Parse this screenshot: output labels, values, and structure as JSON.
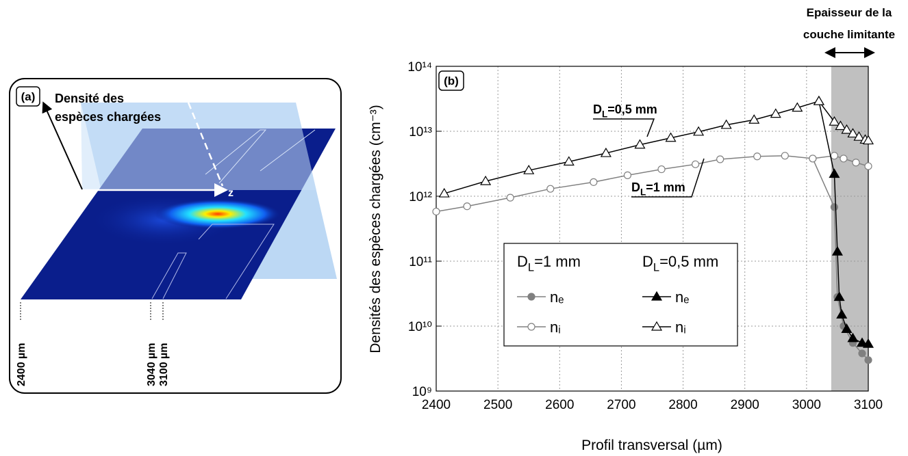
{
  "illustration": {
    "panel_label": "(a)",
    "axis_title": [
      "Densité des",
      "espèces chargées"
    ],
    "axis_z": "z",
    "positions": [
      "2400 µm",
      "3040 µm",
      "3100 µm"
    ]
  },
  "chart_data": {
    "type": "line",
    "panel_label": "(b)",
    "xlabel": "Profil transversal (µm)",
    "ylabel": "Densités des espèces chargées (cm⁻³)",
    "xlim": [
      2400,
      3100
    ],
    "xticks": [
      2400,
      2500,
      2600,
      2700,
      2800,
      2900,
      3000,
      3100
    ],
    "ylim": [
      1000000000.0,
      100000000000000.0
    ],
    "log_y": true,
    "yticks": [
      {
        "value": 1000000000.0,
        "label": "10⁹"
      },
      {
        "value": 10000000000.0,
        "label": "10¹⁰"
      },
      {
        "value": 100000000000.0,
        "label": "10¹¹"
      },
      {
        "value": 1000000000000.0,
        "label": "10¹²"
      },
      {
        "value": 10000000000000.0,
        "label": "10¹³"
      },
      {
        "value": 100000000000000.0,
        "label": "10¹⁴"
      }
    ],
    "grid": true,
    "shaded_region": [
      3040,
      3100
    ],
    "shaded_color": "#c0c0c0",
    "region_label": [
      "Epaisseur de la",
      "couche limitante"
    ],
    "legend": [
      {
        "symbol": "D",
        "subscript": "L",
        "text": "=1 mm"
      },
      {
        "symbol": "D",
        "subscript": "L",
        "text": "=0,5 mm"
      }
    ],
    "annotations": [
      {
        "symbol": "D",
        "subscript": "L",
        "text": "=0,5 mm"
      },
      {
        "symbol": "D",
        "subscript": "L",
        "text": "=1 mm"
      }
    ],
    "series": [
      {
        "name": "nₑ",
        "color": "#808080",
        "marker": "circle",
        "filled": true,
        "x": [
          3010,
          3045,
          3050,
          3060,
          3075,
          3090,
          3100
        ],
        "values": [
          3800000000000.0,
          680000000000.0,
          28000000000.0,
          10000000000.0,
          5500000000.0,
          3800000000.0,
          3000000000.0
        ]
      },
      {
        "name": "nᵢ",
        "color": "#808080",
        "marker": "circle",
        "filled": false,
        "x": [
          2400,
          2450,
          2520,
          2585,
          2655,
          2710,
          2765,
          2820,
          2860,
          2920,
          2965,
          3010,
          3045,
          3060,
          3080,
          3100
        ],
        "values": [
          580000000000.0,
          700000000000.0,
          950000000000.0,
          1300000000000.0,
          1650000000000.0,
          2100000000000.0,
          2600000000000.0,
          3100000000000.0,
          3700000000000.0,
          4100000000000.0,
          4200000000000.0,
          3800000000000.0,
          4200000000000.0,
          3800000000000.0,
          3300000000000.0,
          2900000000000.0
        ]
      },
      {
        "name": "nₑ",
        "color": "#000000",
        "marker": "triangle",
        "filled": true,
        "x": [
          3020,
          3045,
          3050,
          3053,
          3057,
          3065,
          3075,
          3090,
          3100
        ],
        "values": [
          29000000000000.0,
          2200000000000.0,
          140000000000.0,
          28000000000.0,
          15000000000.0,
          9000000000.0,
          6500000000.0,
          5500000000.0,
          5300000000.0
        ]
      },
      {
        "name": "nᵢ",
        "color": "#000000",
        "marker": "triangle",
        "filled": false,
        "x": [
          2413,
          2480,
          2550,
          2615,
          2675,
          2730,
          2780,
          2825,
          2870,
          2915,
          2950,
          2985,
          3020,
          3045,
          3055,
          3065,
          3075,
          3085,
          3095,
          3100
        ],
        "values": [
          1100000000000.0,
          1700000000000.0,
          2500000000000.0,
          3400000000000.0,
          4600000000000.0,
          6200000000000.0,
          7900000000000.0,
          9800000000000.0,
          12500000000000.0,
          15000000000000.0,
          18500000000000.0,
          23000000000000.0,
          29000000000000.0,
          14000000000000.0,
          12000000000000.0,
          10500000000000.0,
          9200000000000.0,
          8200000000000.0,
          7400000000000.0,
          7200000000000.0
        ]
      }
    ]
  }
}
